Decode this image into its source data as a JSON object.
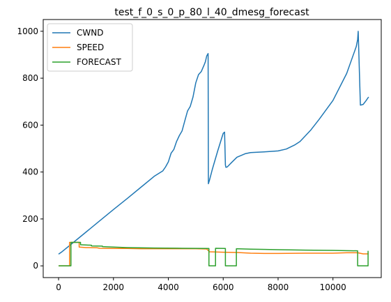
{
  "chart_data": {
    "type": "line",
    "title": "test_f_0_s_0_p_80_l_40_dmesg_forecast",
    "xlabel": "",
    "ylabel": "",
    "xlim": [
      -560,
      11760
    ],
    "ylim": [
      -50,
      1050
    ],
    "xticks": [
      0,
      2000,
      4000,
      6000,
      8000,
      10000
    ],
    "yticks": [
      0,
      200,
      400,
      600,
      800,
      1000
    ],
    "grid": false,
    "legend": "upper left",
    "series": [
      {
        "name": "CWND",
        "color": "#1f77b4",
        "x": [
          0,
          100,
          500,
          1000,
          1500,
          2000,
          2500,
          3000,
          3500,
          3800,
          3900,
          4000,
          4100,
          4200,
          4300,
          4400,
          4500,
          4600,
          4700,
          4800,
          4900,
          5000,
          5100,
          5200,
          5300,
          5350,
          5400,
          5450,
          5460,
          5500,
          5600,
          5800,
          6000,
          6050,
          6080,
          6100,
          6150,
          6200,
          6300,
          6500,
          6800,
          7000,
          7500,
          8000,
          8300,
          8600,
          8800,
          9000,
          9200,
          9500,
          10000,
          10500,
          10850,
          10900,
          10920,
          11000,
          11100,
          11200,
          11300
        ],
        "y": [
          50,
          58,
          96,
          144,
          192,
          240,
          287,
          335,
          383,
          405,
          422,
          443,
          480,
          496,
          530,
          555,
          575,
          618,
          660,
          680,
          720,
          780,
          815,
          828,
          855,
          870,
          895,
          905,
          350,
          365,
          410,
          490,
          565,
          570,
          430,
          420,
          422,
          428,
          440,
          463,
          478,
          483,
          486,
          490,
          498,
          515,
          530,
          555,
          580,
          625,
          705,
          820,
          935,
          965,
          1000,
          685,
          688,
          703,
          720
        ]
      },
      {
        "name": "SPEED",
        "color": "#ff7f0e",
        "x": [
          0,
          400,
          400,
          750,
          750,
          1000,
          1400,
          1500,
          2000,
          2500,
          3000,
          3500,
          4000,
          5000,
          5400,
          5500,
          6000,
          6500,
          7000,
          7500,
          8000,
          9000,
          10000,
          10500,
          10900,
          11100,
          11300
        ],
        "y": [
          0,
          0,
          100,
          100,
          80,
          78,
          77,
          75,
          74,
          74,
          73,
          73,
          73,
          73,
          72,
          60,
          58,
          57,
          54,
          53,
          53,
          54,
          54,
          56,
          56,
          51,
          51
        ]
      },
      {
        "name": "FORECAST",
        "color": "#2ca02c",
        "x": [
          0,
          450,
          450,
          800,
          800,
          1200,
          1200,
          1600,
          1600,
          2000,
          2500,
          3500,
          4500,
          5480,
          5480,
          5720,
          5720,
          6080,
          6080,
          6480,
          6480,
          7000,
          8000,
          9000,
          10000,
          10900,
          10900,
          11280,
          11280
        ],
        "y": [
          0,
          0,
          100,
          100,
          90,
          88,
          85,
          84,
          82,
          80,
          78,
          76,
          75,
          74,
          0,
          0,
          75,
          74,
          0,
          0,
          73,
          71,
          69,
          67,
          66,
          64,
          0,
          0,
          64
        ]
      }
    ]
  }
}
